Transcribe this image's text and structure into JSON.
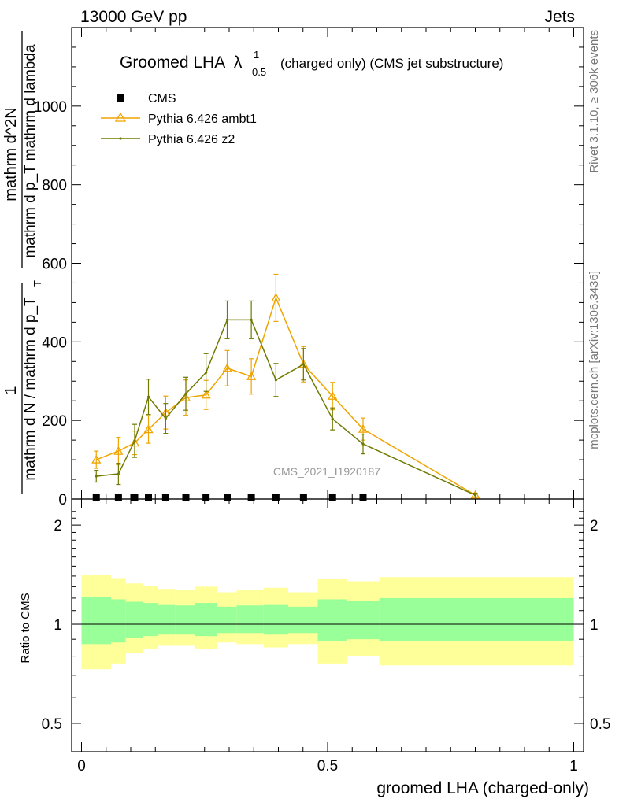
{
  "header": {
    "left": "13000 GeV pp",
    "right": "Jets"
  },
  "side_labels": {
    "rivet": "Rivet 3.1.10, ≥ 300k events",
    "mcplots": "mcplots.cern.ch [arXiv:1306.3436]"
  },
  "chart_data": {
    "type": "line",
    "title": "Groomed LHA",
    "title_symbol": "λ",
    "title_superscript": "1",
    "title_subscript": "0.5",
    "title_suffix": "(charged only) (CMS jet substructure)",
    "watermark": "CMS_2021_I1920187",
    "xlabel": "groomed LHA (charged-only)",
    "ylabel": {
      "numerator": "1",
      "denominator": "mathrm d N / mathrm d p_T",
      "subscript": "T",
      "right_numerator": "mathrm d^2N",
      "right_denominator": "mathrm d p_T mathrm d lambda"
    },
    "xlim": [
      -0.02,
      1.02
    ],
    "ylim": [
      0,
      1200
    ],
    "xticks": [
      {
        "value": 0,
        "label": "0"
      },
      {
        "value": 0.5,
        "label": "0.5"
      },
      {
        "value": 1,
        "label": "1"
      }
    ],
    "yticks": [
      {
        "value": 0,
        "label": "0"
      },
      {
        "value": 200,
        "label": "200"
      },
      {
        "value": 400,
        "label": "400"
      },
      {
        "value": 600,
        "label": "600"
      },
      {
        "value": 800,
        "label": "800"
      },
      {
        "value": 1000,
        "label": "1000"
      }
    ],
    "legend": [
      {
        "name": "CMS",
        "marker": "square",
        "color": "#000000"
      },
      {
        "name": "Pythia 6.426 ambt1",
        "marker": "triangle",
        "color": "#f0a400"
      },
      {
        "name": "Pythia 6.426 z2",
        "marker": "dot",
        "color": "#707a00"
      }
    ],
    "cms": {
      "x": [
        0.03,
        0.075,
        0.108,
        0.136,
        0.171,
        0.212,
        0.253,
        0.296,
        0.345,
        0.395,
        0.451,
        0.51,
        0.572
      ],
      "y": [
        2,
        2,
        2,
        2,
        2,
        2,
        2,
        2,
        2,
        2,
        2,
        2,
        2
      ]
    },
    "series": [
      {
        "name": "Pythia 6.426 ambt1",
        "color": "#f0a400",
        "marker": "triangle",
        "x": [
          0.03,
          0.075,
          0.108,
          0.136,
          0.171,
          0.212,
          0.253,
          0.296,
          0.345,
          0.395,
          0.451,
          0.51,
          0.572,
          0.8
        ],
        "y": [
          100,
          122,
          143,
          177,
          220,
          258,
          265,
          333,
          312,
          512,
          343,
          262,
          178,
          10
        ],
        "err": [
          22,
          35,
          30,
          35,
          42,
          45,
          37,
          45,
          45,
          60,
          45,
          35,
          28,
          5
        ]
      },
      {
        "name": "Pythia 6.426 z2",
        "color": "#707a00",
        "marker": "dot",
        "x": [
          0.03,
          0.075,
          0.108,
          0.136,
          0.171,
          0.212,
          0.253,
          0.296,
          0.345,
          0.395,
          0.451,
          0.51,
          0.572,
          0.8
        ],
        "y": [
          58,
          64,
          148,
          260,
          205,
          268,
          322,
          456,
          456,
          303,
          343,
          204,
          140,
          10
        ],
        "err": [
          15,
          27,
          42,
          45,
          38,
          42,
          48,
          48,
          48,
          42,
          40,
          28,
          25,
          5
        ]
      }
    ],
    "ratio": {
      "ylabel": "Ratio to CMS",
      "yticks": [
        {
          "value": 0.5,
          "label": "0.5"
        },
        {
          "value": 1,
          "label": "1"
        },
        {
          "value": 2,
          "label": "2"
        }
      ],
      "ylim": [
        0.41,
        2.4
      ],
      "bands": [
        {
          "x0": 0.0,
          "x1": 0.06,
          "inner": [
            0.87,
            1.21
          ],
          "outer": [
            0.73,
            1.41
          ]
        },
        {
          "x0": 0.06,
          "x1": 0.09,
          "inner": [
            0.88,
            1.19
          ],
          "outer": [
            0.76,
            1.38
          ]
        },
        {
          "x0": 0.09,
          "x1": 0.125,
          "inner": [
            0.91,
            1.17
          ],
          "outer": [
            0.82,
            1.33
          ]
        },
        {
          "x0": 0.125,
          "x1": 0.155,
          "inner": [
            0.92,
            1.16
          ],
          "outer": [
            0.84,
            1.31
          ]
        },
        {
          "x0": 0.155,
          "x1": 0.19,
          "inner": [
            0.93,
            1.15
          ],
          "outer": [
            0.86,
            1.28
          ]
        },
        {
          "x0": 0.19,
          "x1": 0.23,
          "inner": [
            0.93,
            1.14
          ],
          "outer": [
            0.86,
            1.27
          ]
        },
        {
          "x0": 0.23,
          "x1": 0.275,
          "inner": [
            0.92,
            1.16
          ],
          "outer": [
            0.84,
            1.3
          ]
        },
        {
          "x0": 0.275,
          "x1": 0.315,
          "inner": [
            0.94,
            1.13
          ],
          "outer": [
            0.88,
            1.25
          ]
        },
        {
          "x0": 0.315,
          "x1": 0.37,
          "inner": [
            0.94,
            1.14
          ],
          "outer": [
            0.87,
            1.27
          ]
        },
        {
          "x0": 0.37,
          "x1": 0.42,
          "inner": [
            0.93,
            1.15
          ],
          "outer": [
            0.85,
            1.29
          ]
        },
        {
          "x0": 0.42,
          "x1": 0.48,
          "inner": [
            0.94,
            1.13
          ],
          "outer": [
            0.87,
            1.25
          ]
        },
        {
          "x0": 0.48,
          "x1": 0.54,
          "inner": [
            0.89,
            1.19
          ],
          "outer": [
            0.76,
            1.37
          ]
        },
        {
          "x0": 0.54,
          "x1": 0.605,
          "inner": [
            0.9,
            1.18
          ],
          "outer": [
            0.8,
            1.35
          ]
        },
        {
          "x0": 0.605,
          "x1": 1.0,
          "inner": [
            0.89,
            1.2
          ],
          "outer": [
            0.75,
            1.39
          ]
        }
      ],
      "inner_color": "#99ff99",
      "outer_color": "#ffff99"
    }
  }
}
